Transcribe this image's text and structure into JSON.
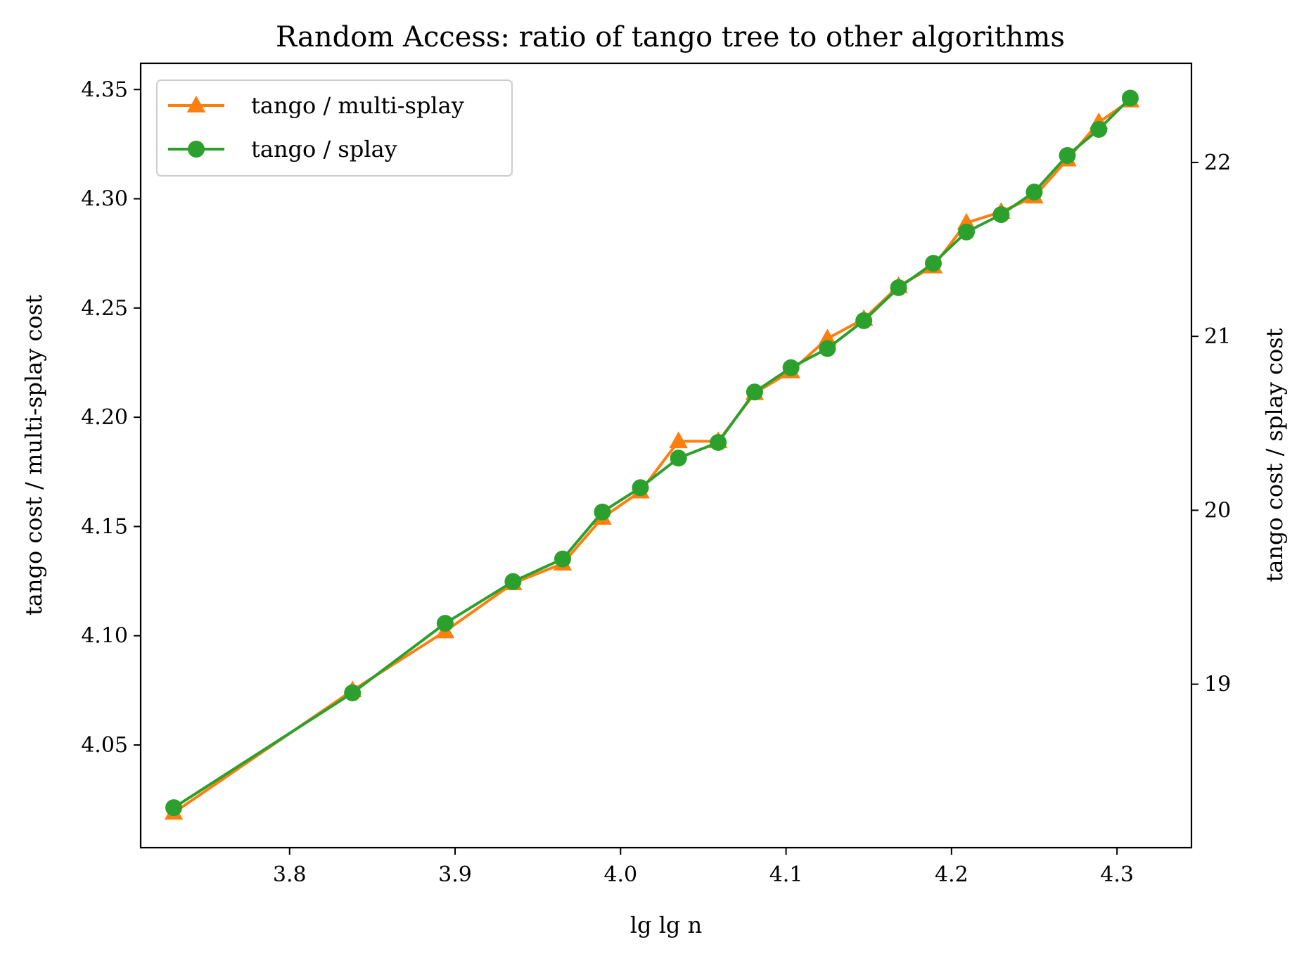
{
  "chart_data": {
    "type": "line",
    "title": "Random Access: ratio of tango tree to other algorithms",
    "xlabel": "lg lg n",
    "ylabel_left": "tango cost / multi-splay cost",
    "ylabel_right": "tango cost / splay cost",
    "xlim": [
      3.71,
      4.345
    ],
    "ylim_left": [
      4.003,
      4.362
    ],
    "ylim_right": [
      18.06,
      22.57
    ],
    "xticks": [
      "3.8",
      "3.9",
      "4.0",
      "4.1",
      "4.2",
      "4.3"
    ],
    "xtick_values": [
      3.8,
      3.9,
      4.0,
      4.1,
      4.2,
      4.3
    ],
    "yticks_left": [
      "4.05",
      "4.10",
      "4.15",
      "4.20",
      "4.25",
      "4.30",
      "4.35"
    ],
    "ytick_values_left": [
      4.05,
      4.1,
      4.15,
      4.2,
      4.25,
      4.3,
      4.35
    ],
    "yticks_right": [
      "19",
      "20",
      "21",
      "22"
    ],
    "ytick_values_right": [
      19,
      20,
      21,
      22
    ],
    "grid": false,
    "legend_position": "top-left",
    "x": [
      3.73,
      3.838,
      3.894,
      3.935,
      3.965,
      3.989,
      4.012,
      4.035,
      4.059,
      4.081,
      4.103,
      4.125,
      4.147,
      4.168,
      4.189,
      4.209,
      4.23,
      4.25,
      4.27,
      4.289,
      4.308
    ],
    "series": [
      {
        "name": "tango / multi-splay",
        "axis": "left",
        "color": "#ff7f0e",
        "marker": "triangle",
        "values": [
          4.019,
          4.075,
          4.102,
          4.124,
          4.133,
          4.154,
          4.166,
          4.189,
          4.189,
          4.211,
          4.221,
          4.236,
          4.245,
          4.26,
          4.269,
          4.289,
          4.294,
          4.301,
          4.318,
          4.335,
          4.345
        ]
      },
      {
        "name": "tango / splay",
        "axis": "right",
        "color": "#2ca02c",
        "marker": "circle",
        "values": [
          18.29,
          18.95,
          19.35,
          19.59,
          19.72,
          19.99,
          20.13,
          20.3,
          20.39,
          20.68,
          20.82,
          20.93,
          21.09,
          21.28,
          21.42,
          21.6,
          21.7,
          21.83,
          22.04,
          22.19,
          22.37
        ]
      }
    ]
  }
}
